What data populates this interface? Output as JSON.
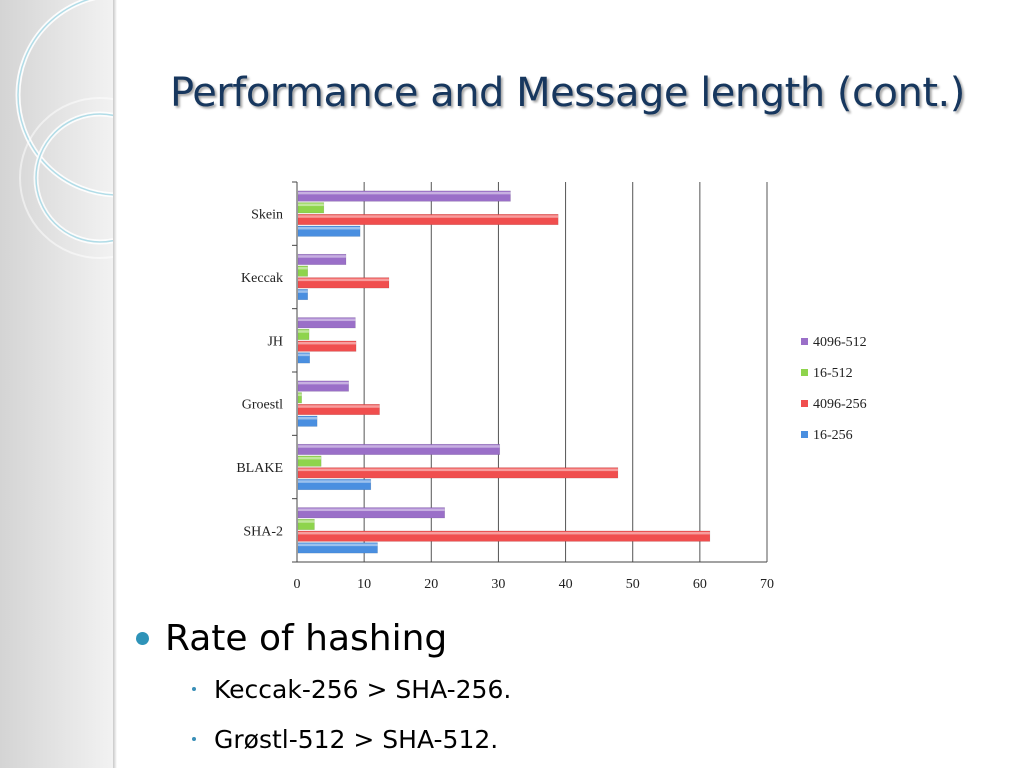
{
  "slide": {
    "title": "Performance and Message length (cont.)",
    "bullet": "Rate of hashing",
    "sub_bullets": [
      "Keccak-256 > SHA-256.",
      "Grøstl-512 > SHA-512."
    ]
  },
  "colors": {
    "title": "#17375e",
    "bullet": "#2e93b8",
    "series": {
      "4096-512": "#9a6fc8",
      "16-512": "#8ed44c",
      "4096-256": "#f04e4e",
      "16-256": "#4a8fe0"
    }
  },
  "chart_data": {
    "type": "bar",
    "orientation": "horizontal",
    "categories": [
      "Skein",
      "Keccak",
      "JH",
      "Groestl",
      "BLAKE",
      "SHA-2"
    ],
    "series": [
      {
        "name": "4096-512",
        "values": [
          31.8,
          7.3,
          8.7,
          7.7,
          30.2,
          22.0
        ]
      },
      {
        "name": "16-512",
        "values": [
          4.0,
          1.6,
          1.8,
          0.7,
          3.6,
          2.6
        ]
      },
      {
        "name": "4096-256",
        "values": [
          38.9,
          13.7,
          8.8,
          12.3,
          47.8,
          61.5
        ]
      },
      {
        "name": "16-256",
        "values": [
          9.4,
          1.6,
          1.9,
          3.0,
          11.0,
          12.0
        ]
      }
    ],
    "xlim": [
      0,
      70
    ],
    "xticks": [
      0,
      10,
      20,
      30,
      40,
      50,
      60,
      70
    ],
    "grid": "vertical",
    "legend": {
      "position": "right",
      "order": [
        "4096-512",
        "16-512",
        "4096-256",
        "16-256"
      ]
    },
    "title": "",
    "xlabel": "",
    "ylabel": ""
  }
}
